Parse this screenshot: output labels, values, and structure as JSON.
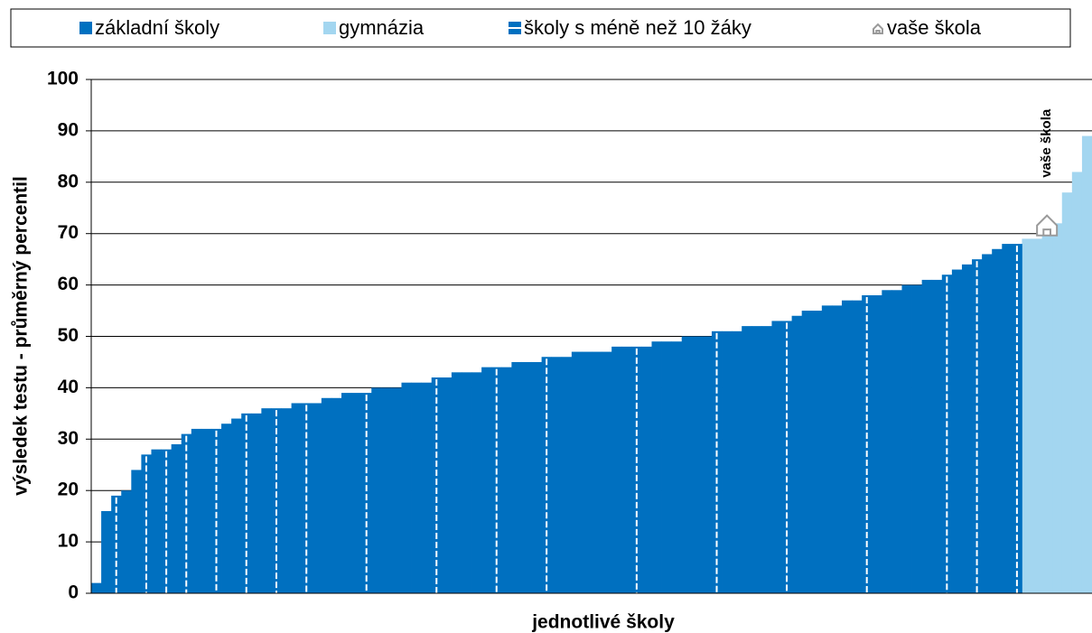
{
  "chart_data": {
    "type": "bar",
    "y_label": "výsledek testu - průměrný percentil",
    "x_label": "jednotlivé školy",
    "annotation": "vaše škola",
    "ylim": [
      0,
      100
    ],
    "yticks": [
      0,
      10,
      20,
      30,
      40,
      50,
      60,
      70,
      80,
      90,
      100
    ],
    "grid": true,
    "legend": "top",
    "series": [
      {
        "name": "základní školy",
        "color": "#0070c0",
        "values": [
          2,
          16,
          null,
          20,
          24,
          null,
          28,
          null,
          29,
          null,
          32,
          32,
          null,
          33,
          34,
          null,
          35,
          36,
          null,
          36,
          37,
          null,
          37,
          38,
          38,
          39,
          39,
          null,
          40,
          40,
          40,
          41,
          41,
          41,
          null,
          42,
          43,
          43,
          43,
          44,
          null,
          44,
          45,
          45,
          45,
          null,
          46,
          46,
          47,
          47,
          47,
          47,
          48,
          48,
          null,
          48,
          49,
          49,
          49,
          50,
          50,
          50,
          null,
          51,
          51,
          52,
          52,
          52,
          53,
          null,
          54,
          55,
          55,
          56,
          56,
          57,
          57,
          null,
          58,
          59,
          59,
          60,
          60,
          61,
          61,
          null,
          63,
          64,
          null,
          66,
          67,
          68,
          null,
          null,
          null,
          null,
          null,
          null,
          null,
          null
        ]
      },
      {
        "name": "gymnázia",
        "color": "#a3d6f0",
        "values": [
          null,
          null,
          null,
          null,
          null,
          null,
          null,
          null,
          null,
          null,
          null,
          null,
          null,
          null,
          null,
          null,
          null,
          null,
          null,
          null,
          null,
          null,
          null,
          null,
          null,
          null,
          null,
          null,
          null,
          null,
          null,
          null,
          null,
          null,
          null,
          null,
          null,
          null,
          null,
          null,
          null,
          null,
          null,
          null,
          null,
          null,
          null,
          null,
          null,
          null,
          null,
          null,
          null,
          null,
          null,
          null,
          null,
          null,
          null,
          null,
          null,
          null,
          null,
          null,
          null,
          null,
          null,
          null,
          null,
          null,
          null,
          null,
          null,
          null,
          null,
          null,
          null,
          null,
          null,
          null,
          null,
          null,
          null,
          null,
          null,
          null,
          null,
          null,
          null,
          null,
          null,
          null,
          null,
          69,
          69,
          null,
          72,
          78,
          82,
          89
        ]
      },
      {
        "name": "školy s méně než 10 žáky",
        "color": "#0070c0",
        "pattern": "stripe",
        "values": [
          null,
          null,
          19,
          null,
          null,
          27,
          null,
          28,
          null,
          31,
          null,
          null,
          32,
          null,
          null,
          35,
          null,
          null,
          36,
          null,
          null,
          37,
          null,
          null,
          null,
          null,
          null,
          39,
          null,
          null,
          null,
          null,
          null,
          null,
          42,
          null,
          null,
          null,
          null,
          null,
          44,
          null,
          null,
          null,
          null,
          46,
          null,
          null,
          null,
          null,
          null,
          null,
          null,
          null,
          48,
          null,
          null,
          null,
          null,
          null,
          null,
          null,
          51,
          null,
          null,
          null,
          null,
          null,
          null,
          53,
          null,
          null,
          null,
          null,
          null,
          null,
          null,
          58,
          null,
          null,
          null,
          null,
          null,
          null,
          null,
          62,
          null,
          null,
          65,
          null,
          null,
          null,
          68,
          null,
          null,
          null,
          null,
          null,
          null,
          null
        ]
      },
      {
        "name": "vaše škola",
        "color": "#9a9a9a",
        "marker": "house",
        "values": [
          null,
          null,
          null,
          null,
          null,
          null,
          null,
          null,
          null,
          null,
          null,
          null,
          null,
          null,
          null,
          null,
          null,
          null,
          null,
          null,
          null,
          null,
          null,
          null,
          null,
          null,
          null,
          null,
          null,
          null,
          null,
          null,
          null,
          null,
          null,
          null,
          null,
          null,
          null,
          null,
          null,
          null,
          null,
          null,
          null,
          null,
          null,
          null,
          null,
          null,
          null,
          null,
          null,
          null,
          null,
          null,
          null,
          null,
          null,
          null,
          null,
          null,
          null,
          null,
          null,
          null,
          null,
          null,
          null,
          null,
          null,
          null,
          null,
          null,
          null,
          null,
          null,
          null,
          null,
          null,
          null,
          null,
          null,
          null,
          null,
          null,
          null,
          null,
          null,
          null,
          null,
          null,
          null,
          null,
          null,
          70,
          null,
          null,
          null,
          null
        ]
      }
    ]
  }
}
